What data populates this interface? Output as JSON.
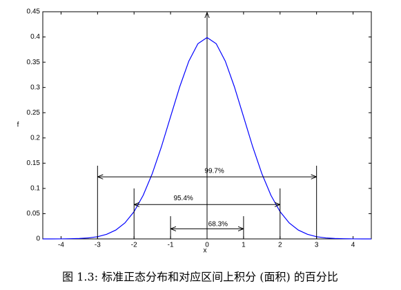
{
  "chart_data": {
    "type": "line",
    "caption": "图 1.3: 标准正态分布和对应区间上积分 (面积) 的百分比",
    "x_label": "x",
    "y_label": "f",
    "xlim": [
      -4.5,
      4.5
    ],
    "ylim": [
      0,
      0.45
    ],
    "xticks": [
      -4,
      -3,
      -2,
      -1,
      0,
      1,
      2,
      3,
      4
    ],
    "yticks": [
      0,
      0.05,
      0.1,
      0.15,
      0.2,
      0.25,
      0.3,
      0.35,
      0.4,
      0.45
    ],
    "x": [
      -4.5,
      -4.25,
      -4,
      -3.75,
      -3.5,
      -3.25,
      -3,
      -2.75,
      -2.5,
      -2.25,
      -2,
      -1.75,
      -1.5,
      -1.25,
      -1,
      -0.75,
      -0.5,
      -0.25,
      0,
      0.25,
      0.5,
      0.75,
      1,
      1.25,
      1.5,
      1.75,
      2,
      2.25,
      2.5,
      2.75,
      3,
      3.25,
      3.5,
      3.75,
      4,
      4.25,
      4.5
    ],
    "series": [
      {
        "color": "#0000ff",
        "values": [
          0.0,
          0.0,
          0.0001,
          0.0004,
          0.0009,
          0.002,
          0.0044,
          0.0091,
          0.0175,
          0.0317,
          0.054,
          0.0863,
          0.1295,
          0.1826,
          0.242,
          0.3011,
          0.3521,
          0.3867,
          0.3989,
          0.3867,
          0.3521,
          0.3011,
          0.242,
          0.1826,
          0.1295,
          0.0863,
          0.054,
          0.0317,
          0.0175,
          0.0091,
          0.0044,
          0.002,
          0.0009,
          0.0004,
          0.0001,
          0.0,
          0.0
        ]
      }
    ],
    "intervals": [
      {
        "label": "68.3%",
        "from": -1,
        "to": 1
      },
      {
        "label": "95.4%",
        "from": -2,
        "to": 2
      },
      {
        "label": "99.7%",
        "from": -3,
        "to": 3
      }
    ]
  }
}
